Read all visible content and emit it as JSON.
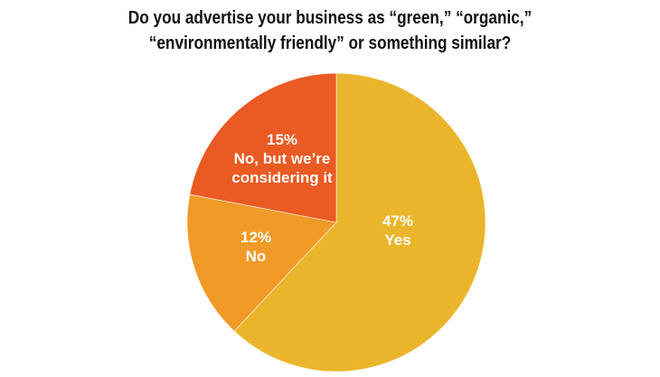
{
  "title": {
    "line1": "Do you advertise your business as “green,” “organic,”",
    "line2": "“environmentally friendly” or something similar?"
  },
  "chart_data": {
    "type": "pie",
    "title": "Do you advertise your business as “green,” “organic,” “environmentally friendly” or something similar?",
    "slices": [
      {
        "label": "Yes",
        "value_label": "47%",
        "fraction": 0.62,
        "color": "#EBB52B"
      },
      {
        "label": "No",
        "value_label": "12%",
        "fraction": 0.16,
        "color": "#F19A28"
      },
      {
        "label": "No, but we’re considering it",
        "value_label": "15%",
        "fraction": 0.22,
        "color": "#EA5A23"
      }
    ]
  }
}
